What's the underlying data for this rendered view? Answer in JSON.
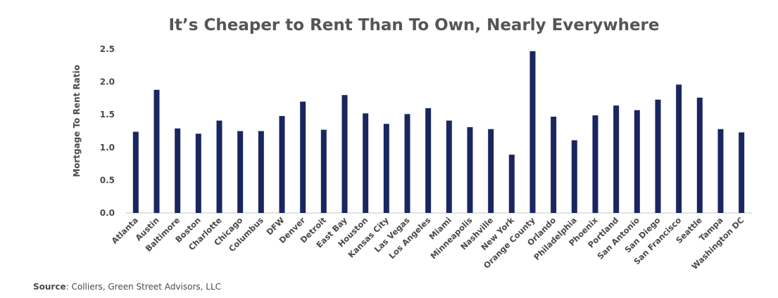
{
  "chart_data": {
    "type": "bar",
    "title": "It’s Cheaper to Rent Than To Own, Nearly Everywhere",
    "xlabel": "",
    "ylabel": "Mortgage To Rent Ratio",
    "ylim": [
      0,
      2.5
    ],
    "yticks": [
      "0.0",
      "0.5",
      "1.0",
      "1.5",
      "2.0",
      "2.5"
    ],
    "grid": false,
    "bar_color": "#1a2660",
    "categories": [
      "Atlanta",
      "Austin",
      "Baltimore",
      "Boston",
      "Charlotte",
      "Chicago",
      "Columbus",
      "DFW",
      "Denver",
      "Detroit",
      "East Bay",
      "Houston",
      "Kansas City",
      "Las Vegas",
      "Los Angeles",
      "Miami",
      "Minneapolis",
      "Nashville",
      "New York",
      "Orange County",
      "Orlando",
      "Philadelphia",
      "Phoenix",
      "Portland",
      "San Antonio",
      "San Diego",
      "San Francisco",
      "Seattle",
      "Tampa",
      "Washington DC"
    ],
    "values": [
      1.24,
      1.88,
      1.29,
      1.21,
      1.41,
      1.25,
      1.25,
      1.48,
      1.7,
      1.27,
      1.8,
      1.52,
      1.36,
      1.51,
      1.6,
      1.41,
      1.31,
      1.28,
      0.89,
      2.47,
      1.47,
      1.11,
      1.49,
      1.64,
      1.57,
      1.73,
      1.96,
      1.76,
      1.28,
      1.23
    ]
  },
  "source": {
    "label": "Source",
    "text": ": Colliers, Green Street Advisors, LLC"
  }
}
